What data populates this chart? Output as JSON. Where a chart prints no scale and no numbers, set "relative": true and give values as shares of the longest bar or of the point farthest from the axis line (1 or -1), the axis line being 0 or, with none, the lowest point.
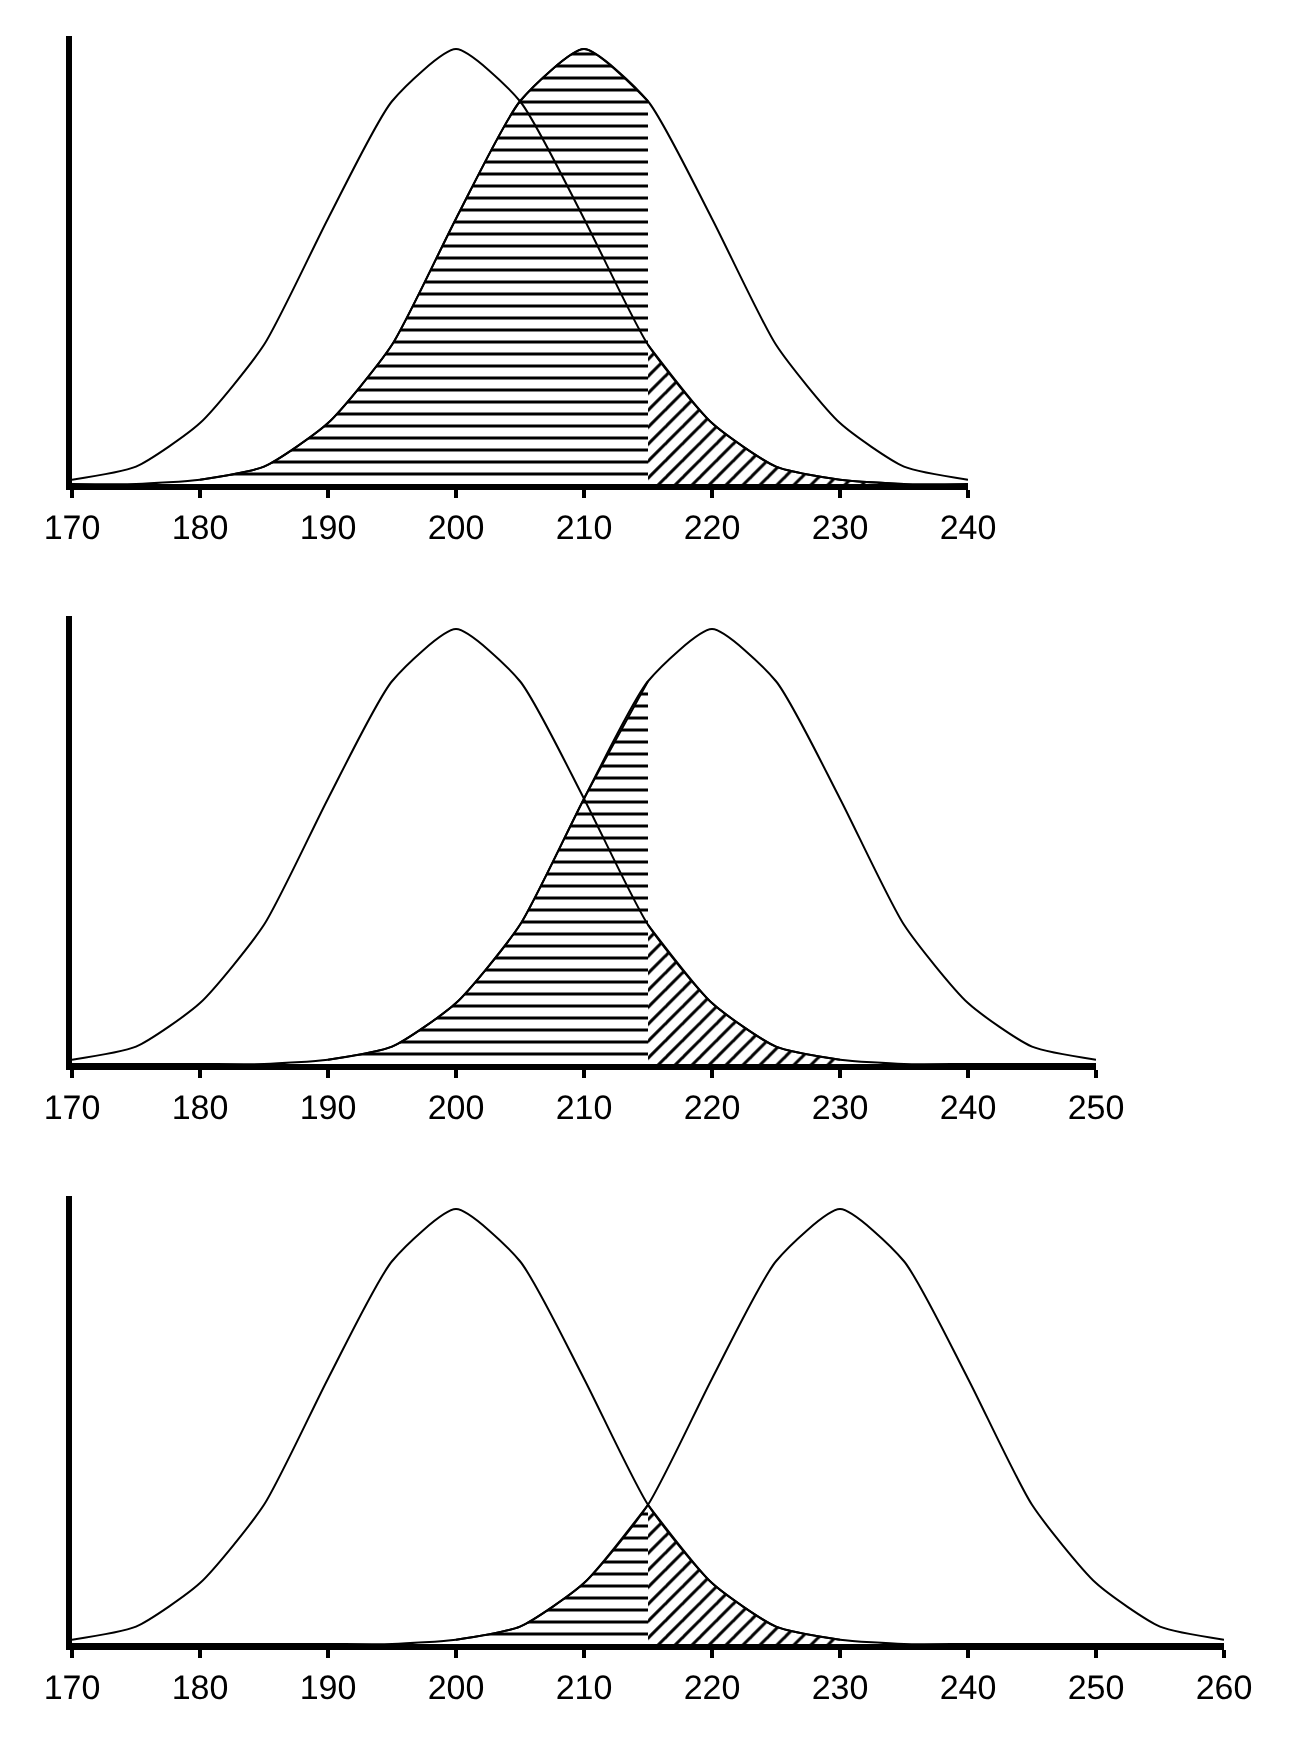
{
  "chart_data": [
    {
      "type": "line",
      "relative": true,
      "xlim": [
        170,
        240
      ],
      "xticks": [
        170,
        180,
        190,
        200,
        210,
        220,
        230,
        240
      ],
      "series": [
        {
          "color": "#000000",
          "x": [
            170,
            175,
            180,
            185,
            190,
            195,
            200,
            205,
            210,
            215,
            220,
            225,
            230,
            235,
            240
          ],
          "values": [
            0.01,
            0.04,
            0.14,
            0.32,
            0.61,
            0.88,
            1,
            0.88,
            0.61,
            0.32,
            0.14,
            0.04,
            0.01,
            0,
            0
          ]
        },
        {
          "color": "#000000",
          "x": [
            170,
            175,
            180,
            185,
            190,
            195,
            200,
            205,
            210,
            215,
            220,
            225,
            230,
            235,
            240
          ],
          "values": [
            0,
            0,
            0.01,
            0.04,
            0.14,
            0.32,
            0.61,
            0.88,
            1,
            0.88,
            0.61,
            0.32,
            0.14,
            0.04,
            0.01
          ]
        },
        {
          "type": "area",
          "color": "#000000",
          "x": [
            180,
            185,
            190,
            195,
            200,
            205,
            210,
            215
          ],
          "values": [
            0.01,
            0.04,
            0.14,
            0.32,
            0.61,
            0.88,
            1,
            0.88
          ]
        },
        {
          "type": "area",
          "color": "#000000",
          "x": [
            215,
            220,
            225,
            230,
            235
          ],
          "values": [
            0.32,
            0.14,
            0.04,
            0.01,
            0
          ]
        }
      ]
    },
    {
      "type": "line",
      "relative": true,
      "xlim": [
        170,
        250
      ],
      "xticks": [
        170,
        180,
        190,
        200,
        210,
        220,
        230,
        240,
        250
      ],
      "series": [
        {
          "color": "#000000",
          "x": [
            170,
            175,
            180,
            185,
            190,
            195,
            200,
            205,
            210,
            215,
            220,
            225,
            230,
            235,
            240,
            245,
            250
          ],
          "values": [
            0.01,
            0.04,
            0.14,
            0.32,
            0.61,
            0.88,
            1,
            0.88,
            0.61,
            0.32,
            0.14,
            0.04,
            0.01,
            0,
            0,
            0,
            0
          ]
        },
        {
          "color": "#000000",
          "x": [
            170,
            175,
            180,
            185,
            190,
            195,
            200,
            205,
            210,
            215,
            220,
            225,
            230,
            235,
            240,
            245,
            250
          ],
          "values": [
            0,
            0,
            0,
            0,
            0.01,
            0.04,
            0.14,
            0.32,
            0.61,
            0.88,
            1,
            0.88,
            0.61,
            0.32,
            0.14,
            0.04,
            0.01
          ]
        },
        {
          "type": "area",
          "color": "#000000",
          "x": [
            190,
            195,
            200,
            205,
            210,
            215
          ],
          "values": [
            0.01,
            0.04,
            0.14,
            0.32,
            0.61,
            0.88
          ]
        },
        {
          "type": "area",
          "color": "#000000",
          "x": [
            215,
            220,
            225,
            230
          ],
          "values": [
            0.32,
            0.14,
            0.04,
            0.01
          ]
        }
      ]
    },
    {
      "type": "line",
      "relative": true,
      "xlim": [
        170,
        260
      ],
      "xticks": [
        170,
        180,
        190,
        200,
        210,
        220,
        230,
        240,
        250,
        260
      ],
      "series": [
        {
          "color": "#000000",
          "x": [
            170,
            175,
            180,
            185,
            190,
            195,
            200,
            205,
            210,
            215,
            220,
            225,
            230,
            235,
            240,
            245,
            250,
            255,
            260
          ],
          "values": [
            0.01,
            0.04,
            0.14,
            0.32,
            0.61,
            0.88,
            1,
            0.88,
            0.61,
            0.32,
            0.14,
            0.04,
            0.01,
            0,
            0,
            0,
            0,
            0,
            0
          ]
        },
        {
          "color": "#000000",
          "x": [
            170,
            175,
            180,
            185,
            190,
            195,
            200,
            205,
            210,
            215,
            220,
            225,
            230,
            235,
            240,
            245,
            250,
            255,
            260
          ],
          "values": [
            0,
            0,
            0,
            0,
            0,
            0,
            0.01,
            0.04,
            0.14,
            0.32,
            0.61,
            0.88,
            1,
            0.88,
            0.61,
            0.32,
            0.14,
            0.04,
            0.01
          ]
        },
        {
          "type": "area",
          "color": "#000000",
          "x": [
            200,
            205,
            210,
            215
          ],
          "values": [
            0.01,
            0.04,
            0.14,
            0.32
          ]
        },
        {
          "type": "area",
          "color": "#000000",
          "x": [
            215,
            220,
            225,
            230
          ],
          "values": [
            0.32,
            0.14,
            0.04,
            0.01
          ]
        }
      ]
    }
  ]
}
